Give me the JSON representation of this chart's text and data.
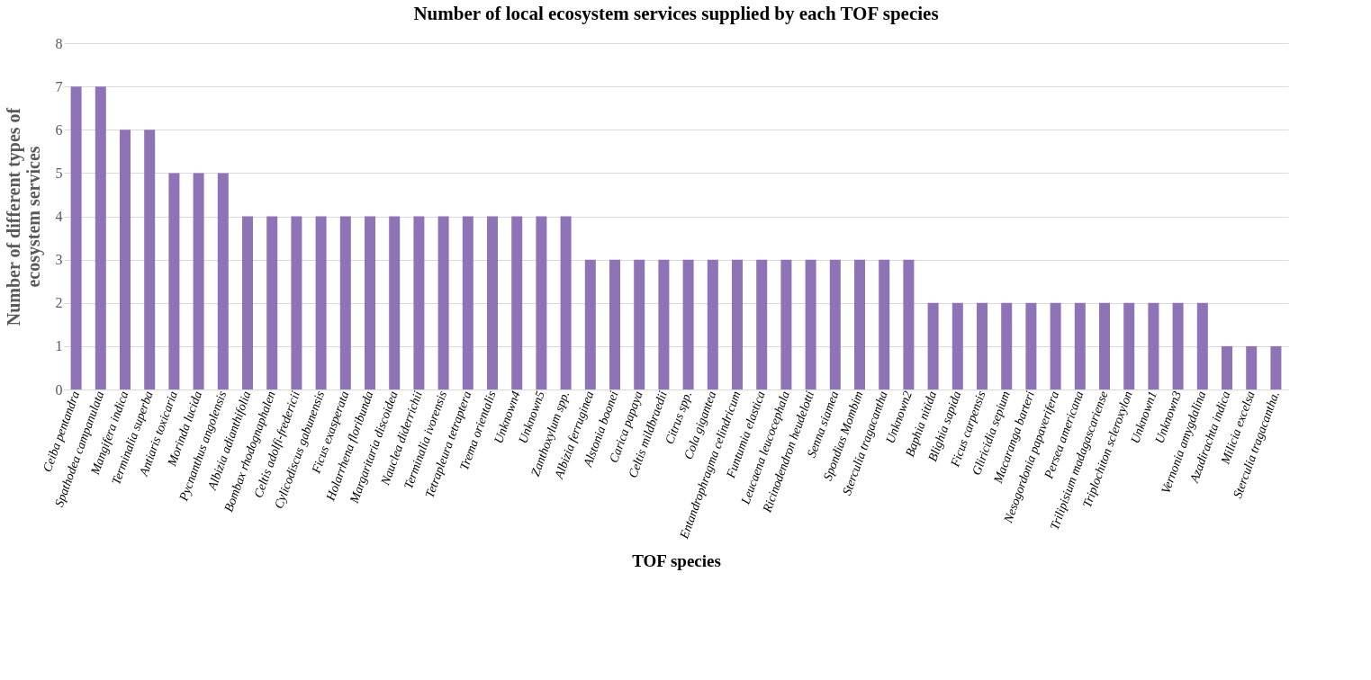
{
  "chart_data": {
    "type": "bar",
    "title": "Number of local ecosystem services supplied by each TOF species",
    "xlabel": "TOF species",
    "ylabel": "Number of different types of ecosystem services",
    "categories": [
      "Ceiba pentandra",
      "Spathodea campanulata",
      "Mangifera indica",
      "Terminalia superba",
      "Antiaris toxicaria",
      "Morinda lucida",
      "Pycnanthus angolensis",
      "Albizia adianthifolia",
      "Bombax rhodognaphalen",
      "Celtis adolfi-fredericii",
      "Cylicodiscus gabunensis",
      "Ficus exasperata",
      "Holarrhena floribunda",
      "Margaritaria discoidea",
      "Nauclea diderrichii",
      "Terminalia ivorensis",
      "Tetrapleura tetraptera",
      "Trema orientalis",
      "Unknown4",
      "Unknown5",
      "Zanthoxylum spp.",
      "Albizia ferruginea",
      "Alstonia boonei",
      "Carica papaya",
      "Celtis mildbraedii",
      "Citrus spp.",
      "Cola gigantea",
      "Entandrophragma celindricum",
      "Funtumia elastica",
      "Leucaena leucocephala",
      "Ricinodendron heudelotti",
      "Senna siamea",
      "Spondias Mombim",
      "Sterculia tragacantha",
      "Unknown2",
      "Baphia nitida",
      "Blighia sapida",
      "Ficus carpensis",
      "Gliricidia sepium",
      "Macaranga barteri",
      "Nesogordonia papaverifera",
      "Persea americana",
      "Trilipisium madagascariense",
      "Triplochiton scleroxylon",
      "Unknown1",
      "Unknown3",
      "Vernonia amygdalina",
      "Azadirachta indica",
      "Milicia excelsa",
      "Sterculia tragacantha."
    ],
    "values": [
      7,
      7,
      6,
      6,
      5,
      5,
      5,
      4,
      4,
      4,
      4,
      4,
      4,
      4,
      4,
      4,
      4,
      4,
      4,
      4,
      4,
      3,
      3,
      3,
      3,
      3,
      3,
      3,
      3,
      3,
      3,
      3,
      3,
      3,
      3,
      2,
      2,
      2,
      2,
      2,
      2,
      2,
      2,
      2,
      2,
      2,
      2,
      1,
      1,
      1
    ],
    "color": "#8e74b6",
    "ylim": [
      0,
      8
    ],
    "yticks": [
      0,
      1,
      2,
      3,
      4,
      5,
      6,
      7,
      8
    ],
    "grid": "y"
  }
}
